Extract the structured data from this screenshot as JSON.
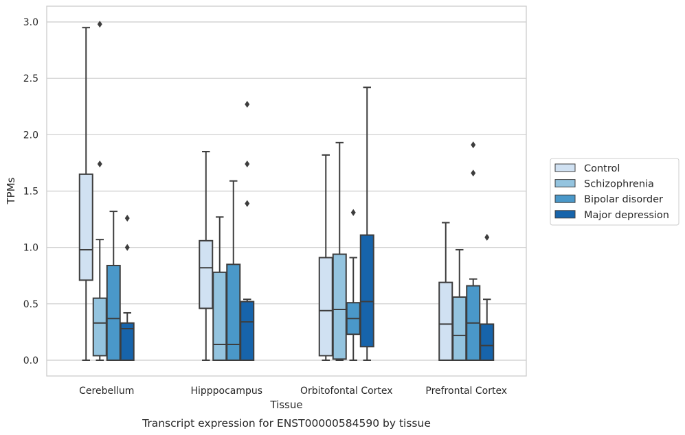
{
  "chart_data": {
    "type": "box",
    "xlabel": "Tissue",
    "ylabel": "TPMs",
    "caption": "Transcript expression for ENST00000584590 by tissue",
    "ylim": [
      -0.14,
      3.14
    ],
    "yticks": [
      "0.0",
      "0.5",
      "1.0",
      "1.5",
      "2.0",
      "2.5",
      "3.0"
    ],
    "ytick_values": [
      0,
      0.5,
      1.0,
      1.5,
      2.0,
      2.5,
      3.0
    ],
    "grid": true,
    "legend_position": "right",
    "categories": [
      "Cerebellum",
      "Hipppocampus",
      "Orbitofontal Cortex",
      "Prefrontal Cortex"
    ],
    "series": [
      {
        "name": "Control",
        "color": "#d0e1f2",
        "boxes": [
          {
            "whislo": 0.0,
            "q1": 0.71,
            "med": 0.98,
            "q3": 1.65,
            "whishi": 2.95,
            "fliers": []
          },
          {
            "whislo": 0.0,
            "q1": 0.46,
            "med": 0.82,
            "q3": 1.06,
            "whishi": 1.85,
            "fliers": []
          },
          {
            "whislo": 0.0,
            "q1": 0.04,
            "med": 0.44,
            "q3": 0.91,
            "whishi": 1.82,
            "fliers": []
          },
          {
            "whislo": 0.0,
            "q1": 0.0,
            "med": 0.32,
            "q3": 0.69,
            "whishi": 1.22,
            "fliers": []
          }
        ]
      },
      {
        "name": "Schizophrenia",
        "color": "#94c4df",
        "boxes": [
          {
            "whislo": 0.0,
            "q1": 0.04,
            "med": 0.33,
            "q3": 0.55,
            "whishi": 1.07,
            "fliers": [
              2.98,
              1.74
            ]
          },
          {
            "whislo": 0.0,
            "q1": 0.0,
            "med": 0.14,
            "q3": 0.78,
            "whishi": 1.27,
            "fliers": []
          },
          {
            "whislo": 0.0,
            "q1": 0.01,
            "med": 0.45,
            "q3": 0.94,
            "whishi": 1.93,
            "fliers": []
          },
          {
            "whislo": 0.0,
            "q1": 0.0,
            "med": 0.22,
            "q3": 0.56,
            "whishi": 0.98,
            "fliers": []
          }
        ]
      },
      {
        "name": "Bipolar disorder",
        "color": "#4a98c9",
        "boxes": [
          {
            "whislo": 0.0,
            "q1": 0.0,
            "med": 0.37,
            "q3": 0.84,
            "whishi": 1.32,
            "fliers": []
          },
          {
            "whislo": 0.0,
            "q1": 0.0,
            "med": 0.14,
            "q3": 0.85,
            "whishi": 1.59,
            "fliers": []
          },
          {
            "whislo": 0.0,
            "q1": 0.23,
            "med": 0.37,
            "q3": 0.51,
            "whishi": 0.91,
            "fliers": [
              1.31
            ]
          },
          {
            "whislo": 0.0,
            "q1": 0.0,
            "med": 0.33,
            "q3": 0.66,
            "whishi": 0.72,
            "fliers": [
              1.91,
              1.66
            ]
          }
        ]
      },
      {
        "name": "Major depression",
        "color": "#1764ab",
        "boxes": [
          {
            "whislo": 0.0,
            "q1": 0.0,
            "med": 0.28,
            "q3": 0.33,
            "whishi": 0.42,
            "fliers": [
              1.26,
              1.0
            ]
          },
          {
            "whislo": 0.0,
            "q1": 0.0,
            "med": 0.34,
            "q3": 0.52,
            "whishi": 0.54,
            "fliers": [
              2.27,
              1.74,
              1.39
            ]
          },
          {
            "whislo": 0.0,
            "q1": 0.12,
            "med": 0.52,
            "q3": 1.11,
            "whishi": 2.42,
            "fliers": []
          },
          {
            "whislo": 0.0,
            "q1": 0.0,
            "med": 0.13,
            "q3": 0.32,
            "whishi": 0.54,
            "fliers": [
              1.09
            ]
          }
        ]
      }
    ],
    "line_color": "#3d3d3d",
    "grid_color": "#cccccc",
    "frame_color": "#cccccc"
  }
}
